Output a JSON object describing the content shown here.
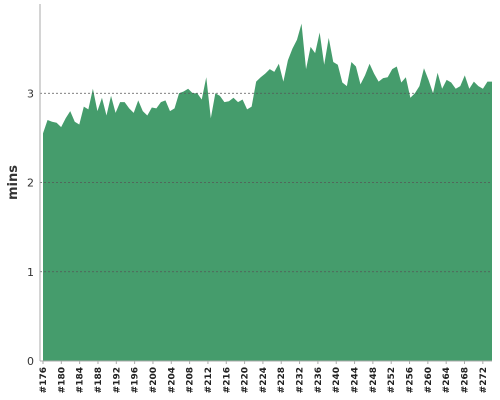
{
  "chart_data": {
    "type": "area",
    "ylabel": "mins",
    "xlabel": "",
    "ylim": [
      0,
      4
    ],
    "y_ticks": [
      0,
      1,
      2,
      3
    ],
    "grid": "horizontal-dashed",
    "x_tick_labels": [
      "#176",
      "#180",
      "#184",
      "#188",
      "#192",
      "#196",
      "#200",
      "#204",
      "#208",
      "#212",
      "#216",
      "#220",
      "#224",
      "#228",
      "#232",
      "#236",
      "#240",
      "#244",
      "#248",
      "#252",
      "#256",
      "#260",
      "#264",
      "#268",
      "#272"
    ],
    "x_start": 176,
    "x_end": 274,
    "values": [
      2.55,
      2.7,
      2.68,
      2.67,
      2.62,
      2.72,
      2.8,
      2.68,
      2.65,
      2.85,
      2.82,
      3.05,
      2.8,
      2.95,
      2.75,
      2.97,
      2.78,
      2.9,
      2.9,
      2.83,
      2.78,
      2.92,
      2.8,
      2.75,
      2.84,
      2.83,
      2.9,
      2.92,
      2.8,
      2.83,
      3.0,
      3.02,
      3.05,
      3.0,
      3.0,
      2.93,
      3.18,
      2.72,
      3.0,
      2.97,
      2.9,
      2.91,
      2.95,
      2.9,
      2.93,
      2.82,
      2.85,
      3.13,
      3.18,
      3.22,
      3.27,
      3.24,
      3.33,
      3.13,
      3.37,
      3.5,
      3.6,
      3.78,
      3.27,
      3.52,
      3.45,
      3.68,
      3.32,
      3.62,
      3.35,
      3.32,
      3.12,
      3.08,
      3.35,
      3.3,
      3.1,
      3.2,
      3.33,
      3.22,
      3.13,
      3.17,
      3.18,
      3.27,
      3.3,
      3.12,
      3.18,
      2.95,
      3.0,
      3.08,
      3.28,
      3.15,
      3.0,
      3.23,
      3.05,
      3.15,
      3.12,
      3.05,
      3.08,
      3.2,
      3.05,
      3.13,
      3.08,
      3.05,
      3.13,
      3.13
    ],
    "colors": {
      "area": "#459c6c",
      "grid": "#555555",
      "axis": "#aaaaaa"
    }
  }
}
